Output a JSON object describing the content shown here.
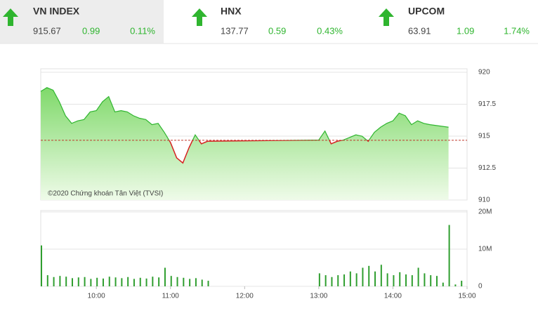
{
  "indices": [
    {
      "name": "VN INDEX",
      "value": "915.67",
      "change": "0.99",
      "percent": "0.11%"
    },
    {
      "name": "HNX",
      "value": "137.77",
      "change": "0.59",
      "percent": "0.43%"
    },
    {
      "name": "UPCOM",
      "value": "63.91",
      "change": "1.09",
      "percent": "1.74%"
    }
  ],
  "chart_data": [
    {
      "type": "line",
      "annotation": "©2020 Chứng khoán Tân Việt (TVSI)",
      "x": [
        "09:15",
        "09:20",
        "09:25",
        "09:30",
        "09:35",
        "09:40",
        "09:45",
        "09:50",
        "09:55",
        "10:00",
        "10:05",
        "10:10",
        "10:15",
        "10:20",
        "10:25",
        "10:30",
        "10:35",
        "10:40",
        "10:45",
        "10:50",
        "10:55",
        "11:00",
        "11:05",
        "11:10",
        "11:15",
        "11:20",
        "11:25",
        "11:30",
        "13:00",
        "13:05",
        "13:10",
        "13:15",
        "13:20",
        "13:25",
        "13:30",
        "13:35",
        "13:40",
        "13:45",
        "13:50",
        "13:55",
        "14:00",
        "14:05",
        "14:10",
        "14:15",
        "14:20",
        "14:25",
        "14:30",
        "14:45"
      ],
      "values": [
        918.5,
        918.8,
        918.6,
        917.7,
        916.6,
        916.0,
        916.2,
        916.3,
        916.9,
        917.0,
        917.7,
        918.1,
        916.9,
        917.0,
        916.9,
        916.6,
        916.4,
        916.3,
        915.9,
        916.0,
        915.3,
        914.5,
        913.3,
        912.9,
        914.1,
        915.1,
        914.4,
        914.6,
        914.7,
        915.4,
        914.4,
        914.6,
        914.7,
        914.9,
        915.1,
        915.0,
        914.6,
        915.3,
        915.7,
        916.0,
        916.2,
        916.8,
        916.6,
        915.9,
        916.2,
        916.0,
        915.9,
        915.7
      ],
      "reference": 914.68,
      "up_color": "#2fb52f",
      "down_color": "#d62020",
      "xlim": [
        "09:15",
        "15:00"
      ],
      "ylim": [
        910,
        920
      ],
      "yticks": [
        910,
        912.5,
        915,
        917.5,
        920
      ],
      "grid": true
    },
    {
      "type": "bar",
      "color": "#2f9e2f",
      "x": [
        "09:15",
        "09:20",
        "09:25",
        "09:30",
        "09:35",
        "09:40",
        "09:45",
        "09:50",
        "09:55",
        "10:00",
        "10:05",
        "10:10",
        "10:15",
        "10:20",
        "10:25",
        "10:30",
        "10:35",
        "10:40",
        "10:45",
        "10:50",
        "10:55",
        "11:00",
        "11:05",
        "11:10",
        "11:15",
        "11:20",
        "11:25",
        "11:30",
        "13:00",
        "13:05",
        "13:10",
        "13:15",
        "13:20",
        "13:25",
        "13:30",
        "13:35",
        "13:40",
        "13:45",
        "13:50",
        "13:55",
        "14:00",
        "14:05",
        "14:10",
        "14:15",
        "14:20",
        "14:25",
        "14:30",
        "14:35",
        "14:40",
        "14:45",
        "14:50",
        "14:55"
      ],
      "values": [
        11000000,
        3000000,
        2500000,
        2800000,
        2600000,
        2200000,
        2400000,
        2500000,
        2000000,
        2300000,
        2100000,
        2600000,
        2400000,
        2200000,
        2500000,
        2000000,
        2300000,
        2100000,
        2600000,
        2400000,
        5000000,
        2800000,
        2500000,
        2300000,
        2000000,
        2200000,
        1800000,
        1500000,
        3500000,
        3000000,
        2500000,
        3000000,
        3200000,
        4000000,
        3500000,
        5000000,
        5500000,
        4000000,
        5800000,
        3500000,
        3000000,
        3800000,
        3200000,
        3000000,
        5000000,
        3500000,
        3000000,
        2800000,
        1000000,
        16500000,
        500000,
        1500000
      ],
      "xlim": [
        "09:15",
        "15:00"
      ],
      "xticks": [
        "10:00",
        "11:00",
        "12:00",
        "13:00",
        "14:00",
        "15:00"
      ],
      "ylim": [
        0,
        20000000
      ],
      "yticks": [
        0,
        {
          "value": 10000000,
          "label": "10M"
        },
        {
          "value": 20000000,
          "label": "20M"
        }
      ],
      "grid": true
    }
  ]
}
